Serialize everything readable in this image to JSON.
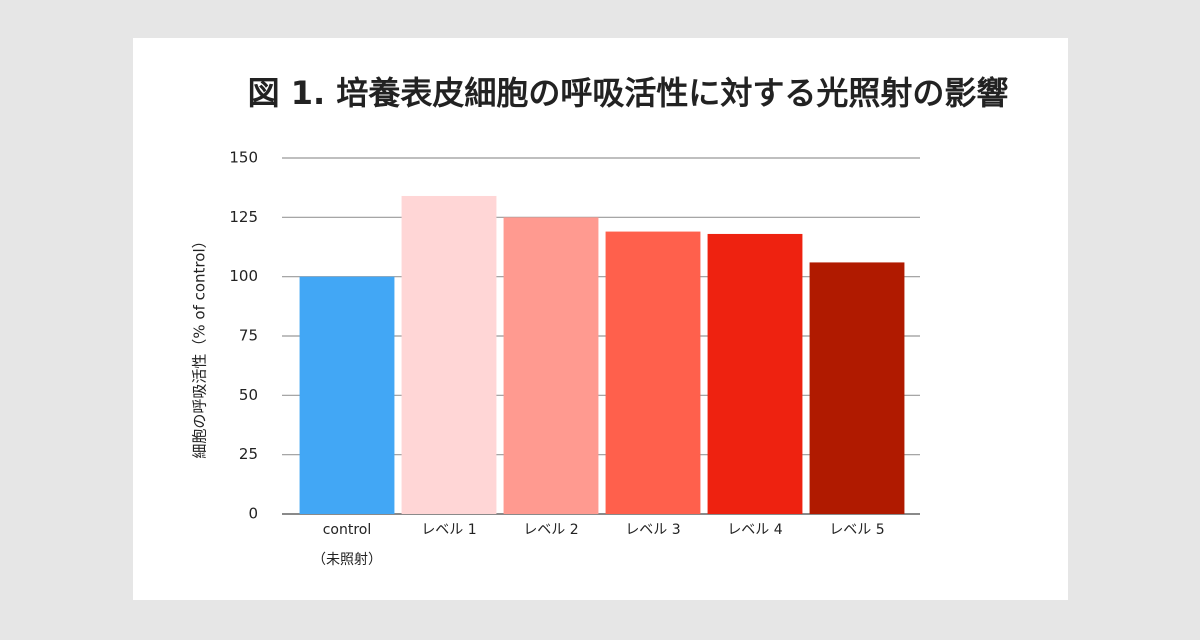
{
  "chart_data": {
    "type": "bar",
    "title": "図 1. 培養表皮細胞の呼吸活性に対する光照射の影響",
    "y_label": "細胞の呼吸活性（% of control）",
    "categories": [
      [
        "control",
        "（未照射）"
      ],
      "レベル 1",
      "レベル 2",
      "レベル 3",
      "レベル 4",
      "レベル 5"
    ],
    "values": [
      100,
      134,
      125,
      119,
      118,
      106
    ],
    "colors": [
      "#42a7f5",
      "#ffd6d6",
      "#ff9a90",
      "#ff604c",
      "#ee2210",
      "#b01a00"
    ],
    "ylim": [
      0,
      150
    ],
    "yticks": [
      0,
      25,
      50,
      75,
      100,
      125,
      150
    ],
    "grid": true
  }
}
